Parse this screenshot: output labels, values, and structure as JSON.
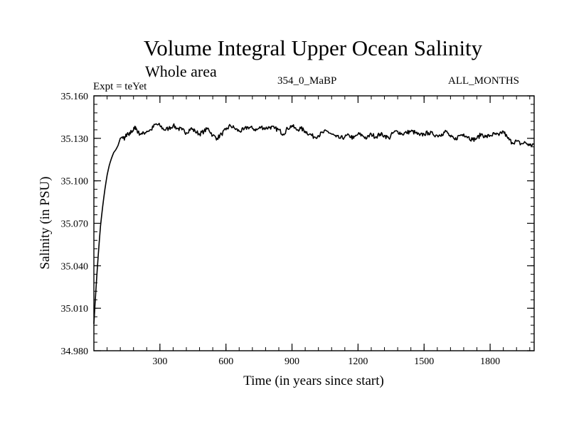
{
  "header": {
    "title": "Volume Integral Upper Ocean Salinity",
    "subtitle": "Whole area",
    "experiment": "Expt = teYet",
    "run_id": "354_0_MaBP",
    "months": "ALL_MONTHS"
  },
  "chart_data": {
    "type": "line",
    "title": "Volume Integral Upper Ocean Salinity",
    "xlabel": "Time (in years since start)",
    "ylabel": "Salinity (in PSU)",
    "xlim": [
      0,
      2000
    ],
    "ylim": [
      34.98,
      35.16
    ],
    "x_ticks": [
      300,
      600,
      900,
      1200,
      1500,
      1800
    ],
    "x_tick_labels": [
      "300",
      "600",
      "900",
      "1200",
      "1500",
      "1800"
    ],
    "y_ticks": [
      34.98,
      35.01,
      35.04,
      35.07,
      35.1,
      35.13,
      35.16
    ],
    "y_tick_labels": [
      "34.980",
      "35.010",
      "35.040",
      "35.070",
      "35.100",
      "35.130",
      "35.160"
    ],
    "grid": false,
    "series": [
      {
        "name": "Salinity",
        "x": [
          0,
          10,
          20,
          30,
          40,
          50,
          60,
          70,
          80,
          90,
          100,
          110,
          120,
          130,
          140,
          150,
          160,
          170,
          180,
          190,
          200,
          220,
          240,
          260,
          280,
          300,
          320,
          340,
          360,
          380,
          400,
          420,
          440,
          460,
          480,
          500,
          520,
          540,
          560,
          580,
          600,
          620,
          640,
          660,
          680,
          700,
          720,
          740,
          760,
          780,
          800,
          820,
          840,
          860,
          880,
          900,
          920,
          940,
          960,
          980,
          1000,
          1020,
          1040,
          1060,
          1080,
          1100,
          1120,
          1140,
          1160,
          1180,
          1200,
          1220,
          1240,
          1260,
          1280,
          1300,
          1320,
          1340,
          1360,
          1380,
          1400,
          1420,
          1440,
          1460,
          1480,
          1500,
          1520,
          1540,
          1560,
          1580,
          1600,
          1620,
          1640,
          1660,
          1680,
          1700,
          1720,
          1740,
          1760,
          1780,
          1800,
          1820,
          1840,
          1860,
          1880,
          1900,
          1920,
          1940,
          1960,
          1980,
          2000
        ],
        "values": [
          34.999,
          35.025,
          35.048,
          35.068,
          35.082,
          35.094,
          35.104,
          35.111,
          35.116,
          35.12,
          35.122,
          35.125,
          35.13,
          35.131,
          35.13,
          35.133,
          35.132,
          35.135,
          35.136,
          35.138,
          35.134,
          35.133,
          35.135,
          35.136,
          35.14,
          35.139,
          35.136,
          35.137,
          35.139,
          35.137,
          35.136,
          35.134,
          35.137,
          35.135,
          35.133,
          35.135,
          35.137,
          35.132,
          35.13,
          35.133,
          35.136,
          35.139,
          35.137,
          35.135,
          35.136,
          35.138,
          35.137,
          35.136,
          35.138,
          35.137,
          35.138,
          35.137,
          35.136,
          35.133,
          35.137,
          35.139,
          35.136,
          35.137,
          35.135,
          35.133,
          35.131,
          35.132,
          35.134,
          35.135,
          35.133,
          35.131,
          35.13,
          35.131,
          35.132,
          35.13,
          35.133,
          35.132,
          35.13,
          35.133,
          35.131,
          35.133,
          35.132,
          35.13,
          35.134,
          35.135,
          35.133,
          35.134,
          35.135,
          35.134,
          35.132,
          35.133,
          35.134,
          35.133,
          35.132,
          35.133,
          35.135,
          35.131,
          35.129,
          35.132,
          35.133,
          35.131,
          35.129,
          35.13,
          35.133,
          35.131,
          35.132,
          35.133,
          35.132,
          35.135,
          35.13,
          35.127,
          35.128,
          35.126,
          35.127,
          35.125,
          35.126
        ]
      }
    ]
  }
}
